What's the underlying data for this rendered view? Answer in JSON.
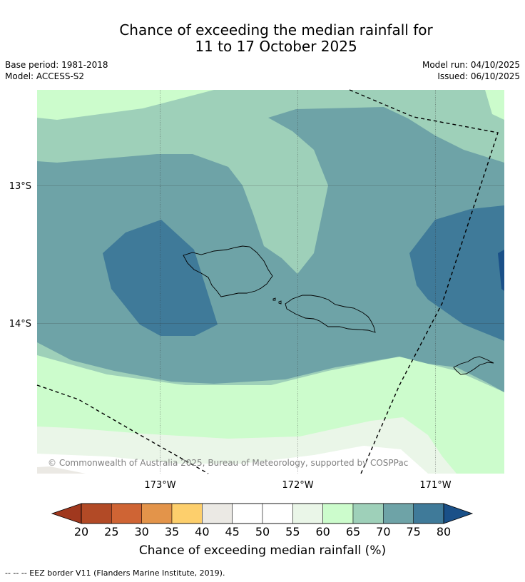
{
  "header": {
    "title_line1": "Chance of exceeding the median rainfall for",
    "title_line2": "11 to 17 October 2025",
    "base_period": "Base period: 1981-2018",
    "model": "Model: ACCESS-S2",
    "model_run": "Model run: 04/10/2025",
    "issued": "Issued: 06/10/2025"
  },
  "map": {
    "lat_labels": [
      "13°S",
      "14°S"
    ],
    "lon_labels": [
      "173°W",
      "172°W",
      "171°W"
    ],
    "copyright": "© Commonwealth of Australia 2025, Bureau of Meteorology, supported by COSPPac"
  },
  "colorbar": {
    "ticks": [
      "20",
      "25",
      "30",
      "35",
      "40",
      "45",
      "50",
      "55",
      "60",
      "65",
      "70",
      "75",
      "80"
    ],
    "colors": [
      "#b24a26",
      "#cf6434",
      "#e3944a",
      "#fdcf6c",
      "#ebe9e4",
      "#ffffff",
      "#ffffff",
      "#eaf6e8",
      "#ccfccc",
      "#9ed0b9",
      "#6ea3a7",
      "#3f7a99"
    ],
    "low_extend_color": "#a0381e",
    "high_extend_color": "#1a5088",
    "label": "Chance of exceeding median rainfall (%)"
  },
  "footnote": "--  --  -- EEZ border V11 (Flanders Marine Institute, 2019)."
}
